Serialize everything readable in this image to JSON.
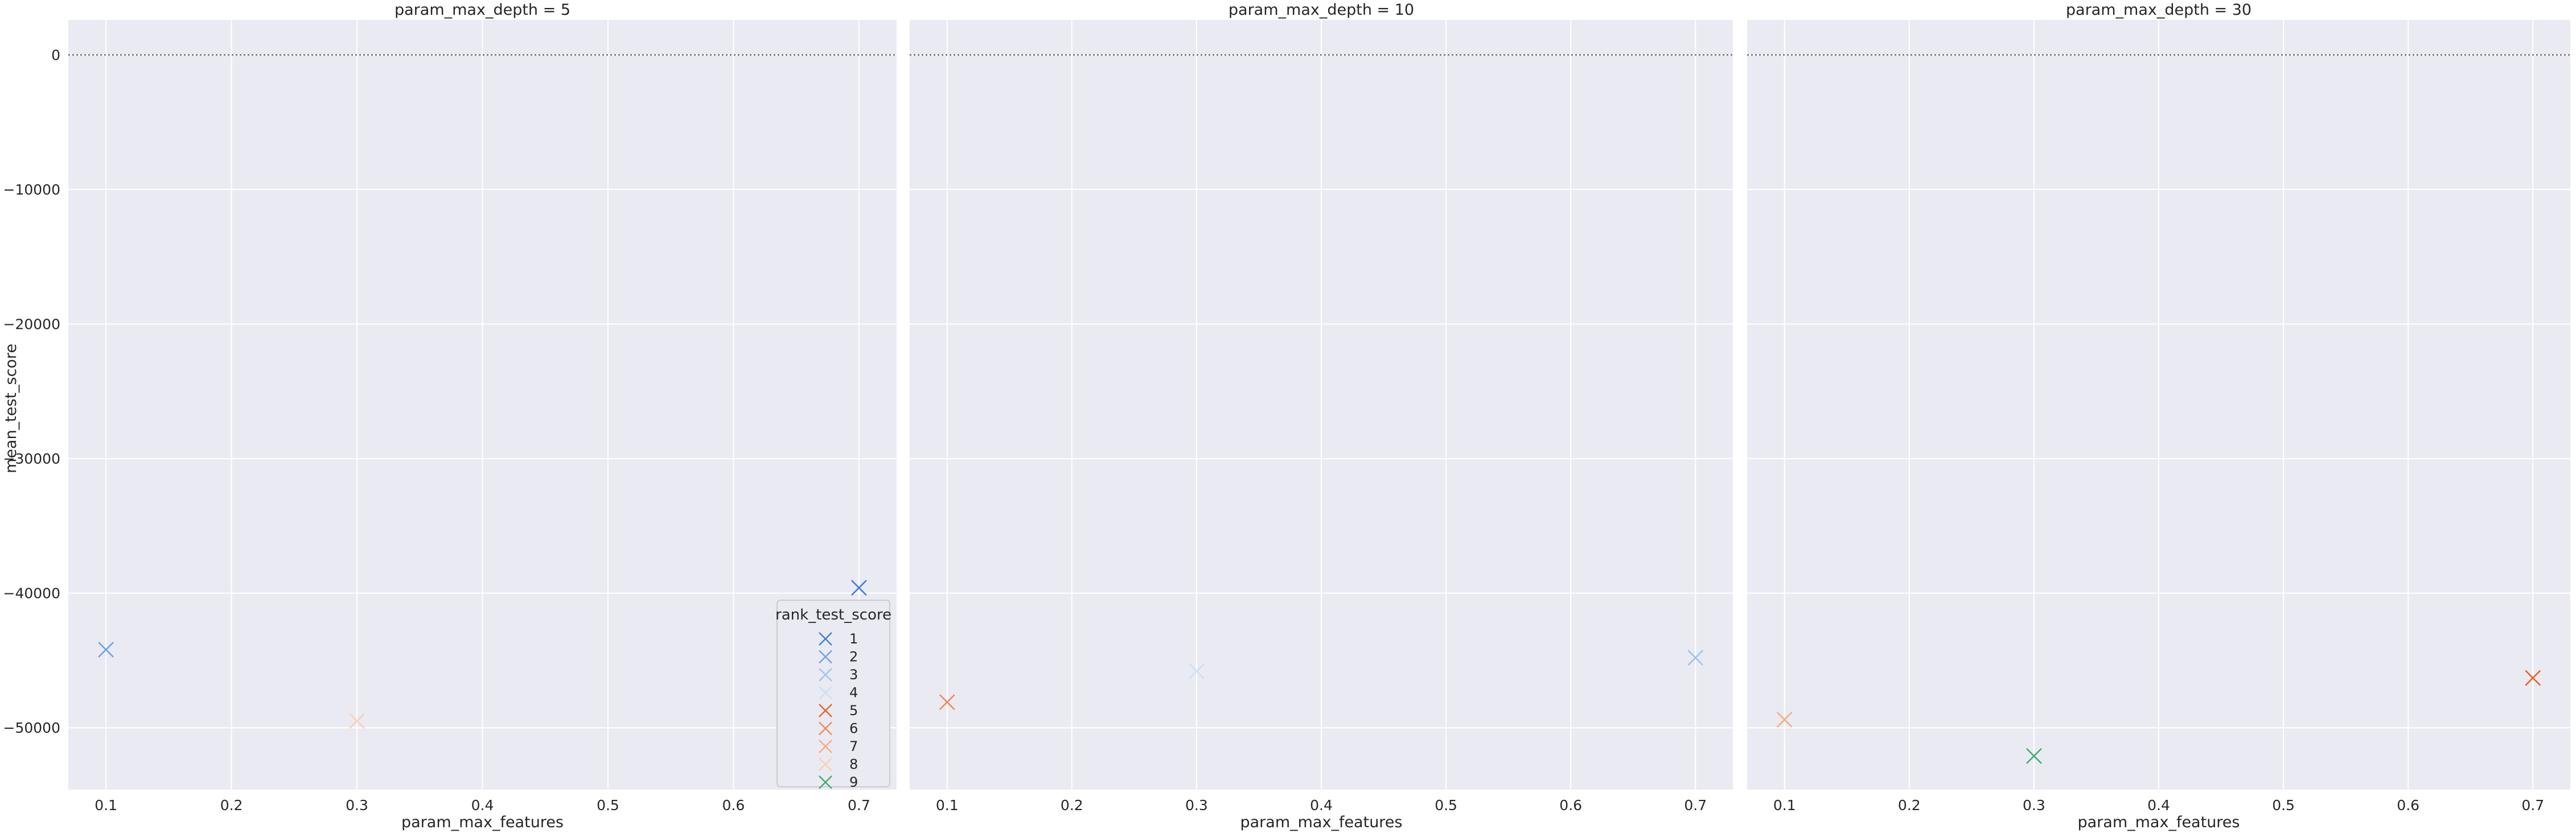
{
  "chart_data": {
    "type": "scatter",
    "marker": "x",
    "y_label": "mean_test_score",
    "x_label": "param_max_features",
    "x_range": [
      0.07,
      0.73
    ],
    "y_range": [
      -54600,
      2600
    ],
    "x_ticks": [
      0.1,
      0.2,
      0.3,
      0.4,
      0.5,
      0.6,
      0.7
    ],
    "x_tick_labels": [
      "0.1",
      "0.2",
      "0.3",
      "0.4",
      "0.5",
      "0.6",
      "0.7"
    ],
    "y_ticks": [
      0,
      -10000,
      -20000,
      -30000,
      -40000,
      -50000
    ],
    "y_tick_labels": [
      "0",
      "−10000",
      "−20000",
      "−30000",
      "−40000",
      "−50000"
    ],
    "reference_line_y": 0,
    "grid": true,
    "legend": {
      "title": "rank_test_score",
      "placement": "lower-right of first panel",
      "entries": [
        {
          "label": "1",
          "color": "#3f7fd4"
        },
        {
          "label": "2",
          "color": "#6fa3df"
        },
        {
          "label": "3",
          "color": "#9ec5ea"
        },
        {
          "label": "4",
          "color": "#cde0f2"
        },
        {
          "label": "5",
          "color": "#e8642c"
        },
        {
          "label": "6",
          "color": "#f08a55"
        },
        {
          "label": "7",
          "color": "#f6ad82"
        },
        {
          "label": "8",
          "color": "#f9d1b5"
        },
        {
          "label": "9",
          "color": "#3fae6a"
        }
      ]
    },
    "panels": [
      {
        "title": "param_max_depth = 5",
        "points": [
          {
            "x": 0.1,
            "y": -44200,
            "rank": "2"
          },
          {
            "x": 0.3,
            "y": -49500,
            "rank": "8"
          },
          {
            "x": 0.7,
            "y": -39600,
            "rank": "1"
          }
        ]
      },
      {
        "title": "param_max_depth = 10",
        "points": [
          {
            "x": 0.1,
            "y": -48100,
            "rank": "6"
          },
          {
            "x": 0.3,
            "y": -45800,
            "rank": "4"
          },
          {
            "x": 0.7,
            "y": -44800,
            "rank": "3"
          }
        ]
      },
      {
        "title": "param_max_depth = 30",
        "points": [
          {
            "x": 0.1,
            "y": -49400,
            "rank": "7"
          },
          {
            "x": 0.3,
            "y": -52100,
            "rank": "9"
          },
          {
            "x": 0.7,
            "y": -46300,
            "rank": "5"
          }
        ]
      }
    ]
  }
}
